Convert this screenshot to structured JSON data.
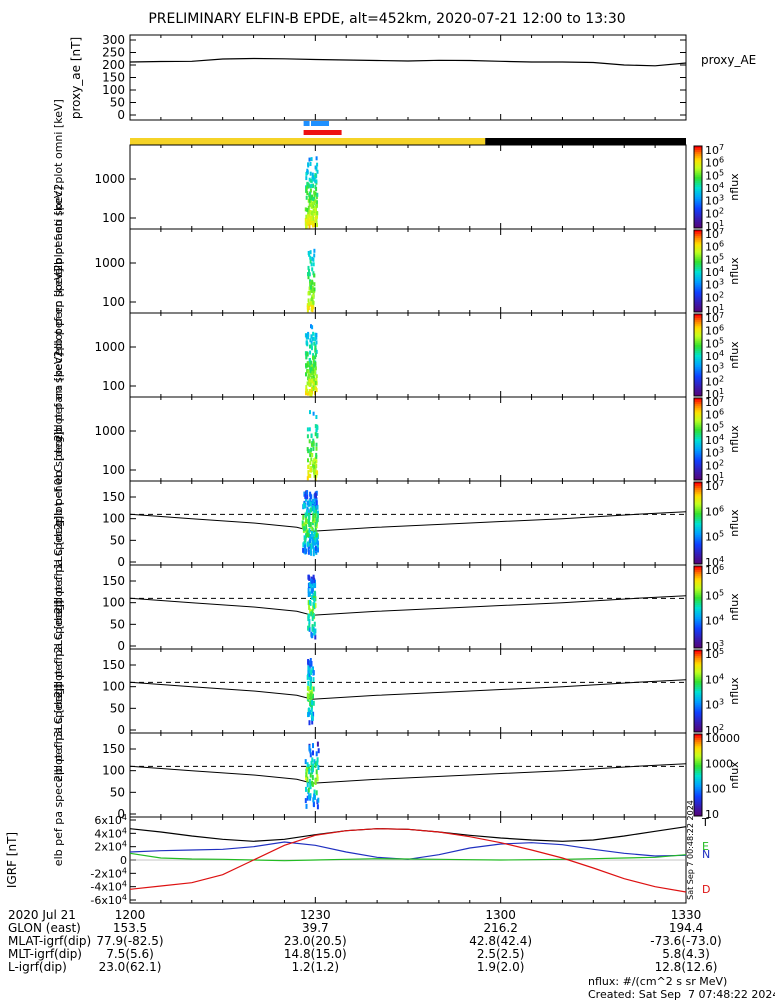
{
  "title": "PRELIMINARY ELFIN-B EPDE, alt=452km, 2020-07-21 12:00 to 13:30",
  "colors": {
    "proxy_line": "#000000",
    "bar_yellow": "#f5d327",
    "bar_black": "#000000",
    "bar_blue": "#1e90ff",
    "bar_red": "#ee1111",
    "dashed_line": "#000000",
    "grf_N": "#2030c0",
    "grf_E": "#22bb22",
    "grf_D": "#dd1111",
    "grf_T": "#000000"
  },
  "chart_data": [
    {
      "type": "line",
      "panel": "proxy_AE",
      "ylabel": "proxy_ae [nT]",
      "legend": "proxy_AE",
      "ylim": [
        0,
        300
      ],
      "yticks": [
        "0",
        "50",
        "100",
        "150",
        "200",
        "250",
        "300"
      ],
      "x_minutes": [
        0,
        5,
        10,
        15,
        20,
        25,
        30,
        35,
        40,
        45,
        50,
        55,
        60,
        65,
        70,
        75,
        80,
        85,
        90
      ],
      "values": [
        212,
        214,
        215,
        224,
        226,
        225,
        222,
        220,
        218,
        216,
        219,
        218,
        215,
        212,
        212,
        210,
        200,
        197,
        208
      ]
    },
    {
      "type": "heatmap",
      "panel": "elb_pef_en_spec2plot_omni",
      "ylabel": "elb pef en spec2plot omni [keV]",
      "yscale": "log",
      "yticks": [
        "100",
        "1000"
      ],
      "zlabel": "nflux",
      "ztick_labels": [
        "10^1",
        "10^2",
        "10^3",
        "10^4",
        "10^5",
        "10^6",
        "10^7"
      ],
      "data_window_minutes": [
        28.3,
        30.2
      ]
    },
    {
      "type": "heatmap",
      "panel": "elb_pef_en_spec2plot_anti",
      "ylabel": "elb pef en spec2plot anti [keV]",
      "yscale": "log",
      "yticks": [
        "100",
        "1000"
      ],
      "zlabel": "nflux",
      "ztick_labels": [
        "10^1",
        "10^2",
        "10^3",
        "10^4",
        "10^5",
        "10^6",
        "10^7"
      ],
      "data_window_minutes": [
        28.6,
        29.7
      ]
    },
    {
      "type": "heatmap",
      "panel": "elb_pef_en_spec2plot_perp",
      "ylabel": "elb pef en spec2plot perp [keV]",
      "yscale": "log",
      "yticks": [
        "100",
        "1000"
      ],
      "zlabel": "nflux",
      "ztick_labels": [
        "10^1",
        "10^2",
        "10^3",
        "10^4",
        "10^5",
        "10^6",
        "10^7"
      ],
      "data_window_minutes": [
        28.3,
        30.1
      ]
    },
    {
      "type": "heatmap",
      "panel": "elb_pef_en_spec2plot_para",
      "ylabel": "elb pef en spec2plot para [keV]",
      "yscale": "log",
      "yticks": [
        "100",
        "1000"
      ],
      "zlabel": "nflux",
      "ztick_labels": [
        "10^1",
        "10^2",
        "10^3",
        "10^4",
        "10^5",
        "10^6",
        "10^7"
      ],
      "data_window_minutes": [
        28.6,
        30.2
      ]
    },
    {
      "type": "heatmap",
      "panel": "elb_pef_pa_spec2plot_ch0LC",
      "ylabel": "elb pef pa spec2plot ch0LC [deg]",
      "ylim": [
        0,
        180
      ],
      "yticks": [
        "0",
        "50",
        "100",
        "150"
      ],
      "zlabel": "nflux",
      "ztick_labels": [
        "10^4",
        "10^5",
        "10^6",
        "10^7"
      ],
      "loss_cone_deg": [
        110,
        100,
        90,
        80,
        71,
        80,
        90,
        100,
        110,
        116
      ],
      "loss_cone_minutes": [
        0,
        10,
        20,
        27,
        29.5,
        40,
        55,
        70,
        82,
        90
      ],
      "dashed_level_deg": 110
    },
    {
      "type": "heatmap",
      "panel": "elb_pef_pa_spec2plot_ch1LC",
      "ylabel": "elb pef pa spec2plot ch1LC [deg]",
      "ylim": [
        0,
        180
      ],
      "yticks": [
        "0",
        "50",
        "100",
        "150"
      ],
      "zlabel": "nflux",
      "ztick_labels": [
        "10^3",
        "10^4",
        "10^5",
        "10^6"
      ],
      "dashed_level_deg": 110
    },
    {
      "type": "heatmap",
      "panel": "elb_pef_pa_spec2plot_ch2LC",
      "ylabel": "elb pef pa spec2plot ch2LC [deg]",
      "ylim": [
        0,
        180
      ],
      "yticks": [
        "0",
        "50",
        "100",
        "150"
      ],
      "zlabel": "nflux",
      "ztick_labels": [
        "10^2",
        "10^3",
        "10^4",
        "10^5"
      ],
      "dashed_level_deg": 110
    },
    {
      "type": "heatmap",
      "panel": "elb_pef_pa_spec2plot_ch3LC",
      "ylabel": "elb pef pa spec2plot ch3LC [deg]",
      "ylim": [
        0,
        180
      ],
      "yticks": [
        "0",
        "50",
        "100",
        "150"
      ],
      "zlabel": "nflux",
      "ztick_labels": [
        "10",
        "100",
        "1000",
        "10000"
      ],
      "dashed_level_deg": 110
    },
    {
      "type": "line",
      "panel": "IGRF",
      "ylabel": "IGRF [nT]",
      "ylim": [
        -60000,
        60000
      ],
      "yticks": [
        "-6x10^4",
        "-4x10^4",
        "-2x10^4",
        "0",
        "2x10^4",
        "4x10^4",
        "6x10^4"
      ],
      "x_minutes": [
        0,
        5,
        10,
        15,
        20,
        25,
        30,
        35,
        40,
        45,
        50,
        55,
        60,
        65,
        70,
        75,
        80,
        85,
        90
      ],
      "series": [
        {
          "name": "T",
          "values": [
            47000,
            42000,
            36000,
            31000,
            28000,
            31000,
            38000,
            44000,
            47000,
            46000,
            42000,
            37000,
            33000,
            30000,
            28000,
            30000,
            36000,
            43000,
            50000
          ]
        },
        {
          "name": "N",
          "values": [
            12000,
            14000,
            15000,
            16000,
            20000,
            27000,
            22000,
            12000,
            4000,
            1000,
            8000,
            18000,
            24000,
            26000,
            23000,
            16000,
            10000,
            6000,
            7000
          ]
        },
        {
          "name": "E",
          "values": [
            10000,
            3000,
            1500,
            1000,
            0,
            -1000,
            0,
            1000,
            2000,
            1500,
            1000,
            500,
            0,
            500,
            1000,
            2000,
            3000,
            4000,
            8000
          ]
        },
        {
          "name": "D",
          "values": [
            -44000,
            -39000,
            -34000,
            -22000,
            0,
            22000,
            37000,
            44000,
            47000,
            46000,
            42000,
            35000,
            26000,
            15000,
            3000,
            -12000,
            -28000,
            -40000,
            -48000
          ]
        }
      ]
    }
  ],
  "xaxis": {
    "row_labels": [
      "2020 Jul 21",
      "GLON (east)",
      "MLAT-igrf(dip)",
      "MLT-igrf(dip)",
      "L-igrf(dip)"
    ],
    "ticks": [
      {
        "minute": 0,
        "values": [
          "1200",
          "153.5",
          "77.9(-82.5)",
          "7.5(5.6)",
          "23.0(62.1)"
        ]
      },
      {
        "minute": 30,
        "values": [
          "1230",
          "39.7",
          "23.0(20.5)",
          "14.8(15.0)",
          "1.2(1.2)"
        ]
      },
      {
        "minute": 60,
        "values": [
          "1300",
          "216.2",
          "42.8(42.4)",
          "2.5(2.5)",
          "1.9(2.0)"
        ]
      },
      {
        "minute": 90,
        "values": [
          "1330",
          "194.4",
          "-73.6(-73.0)",
          "5.8(4.3)",
          "12.8(12.6)"
        ]
      }
    ]
  },
  "footer": {
    "units": "nflux: #/(cm^2 s sr MeV)",
    "created": "Created: Sat Sep  7 07:48:22 2024",
    "stamp": "Sat Sep 7 00:48:22 2024"
  }
}
